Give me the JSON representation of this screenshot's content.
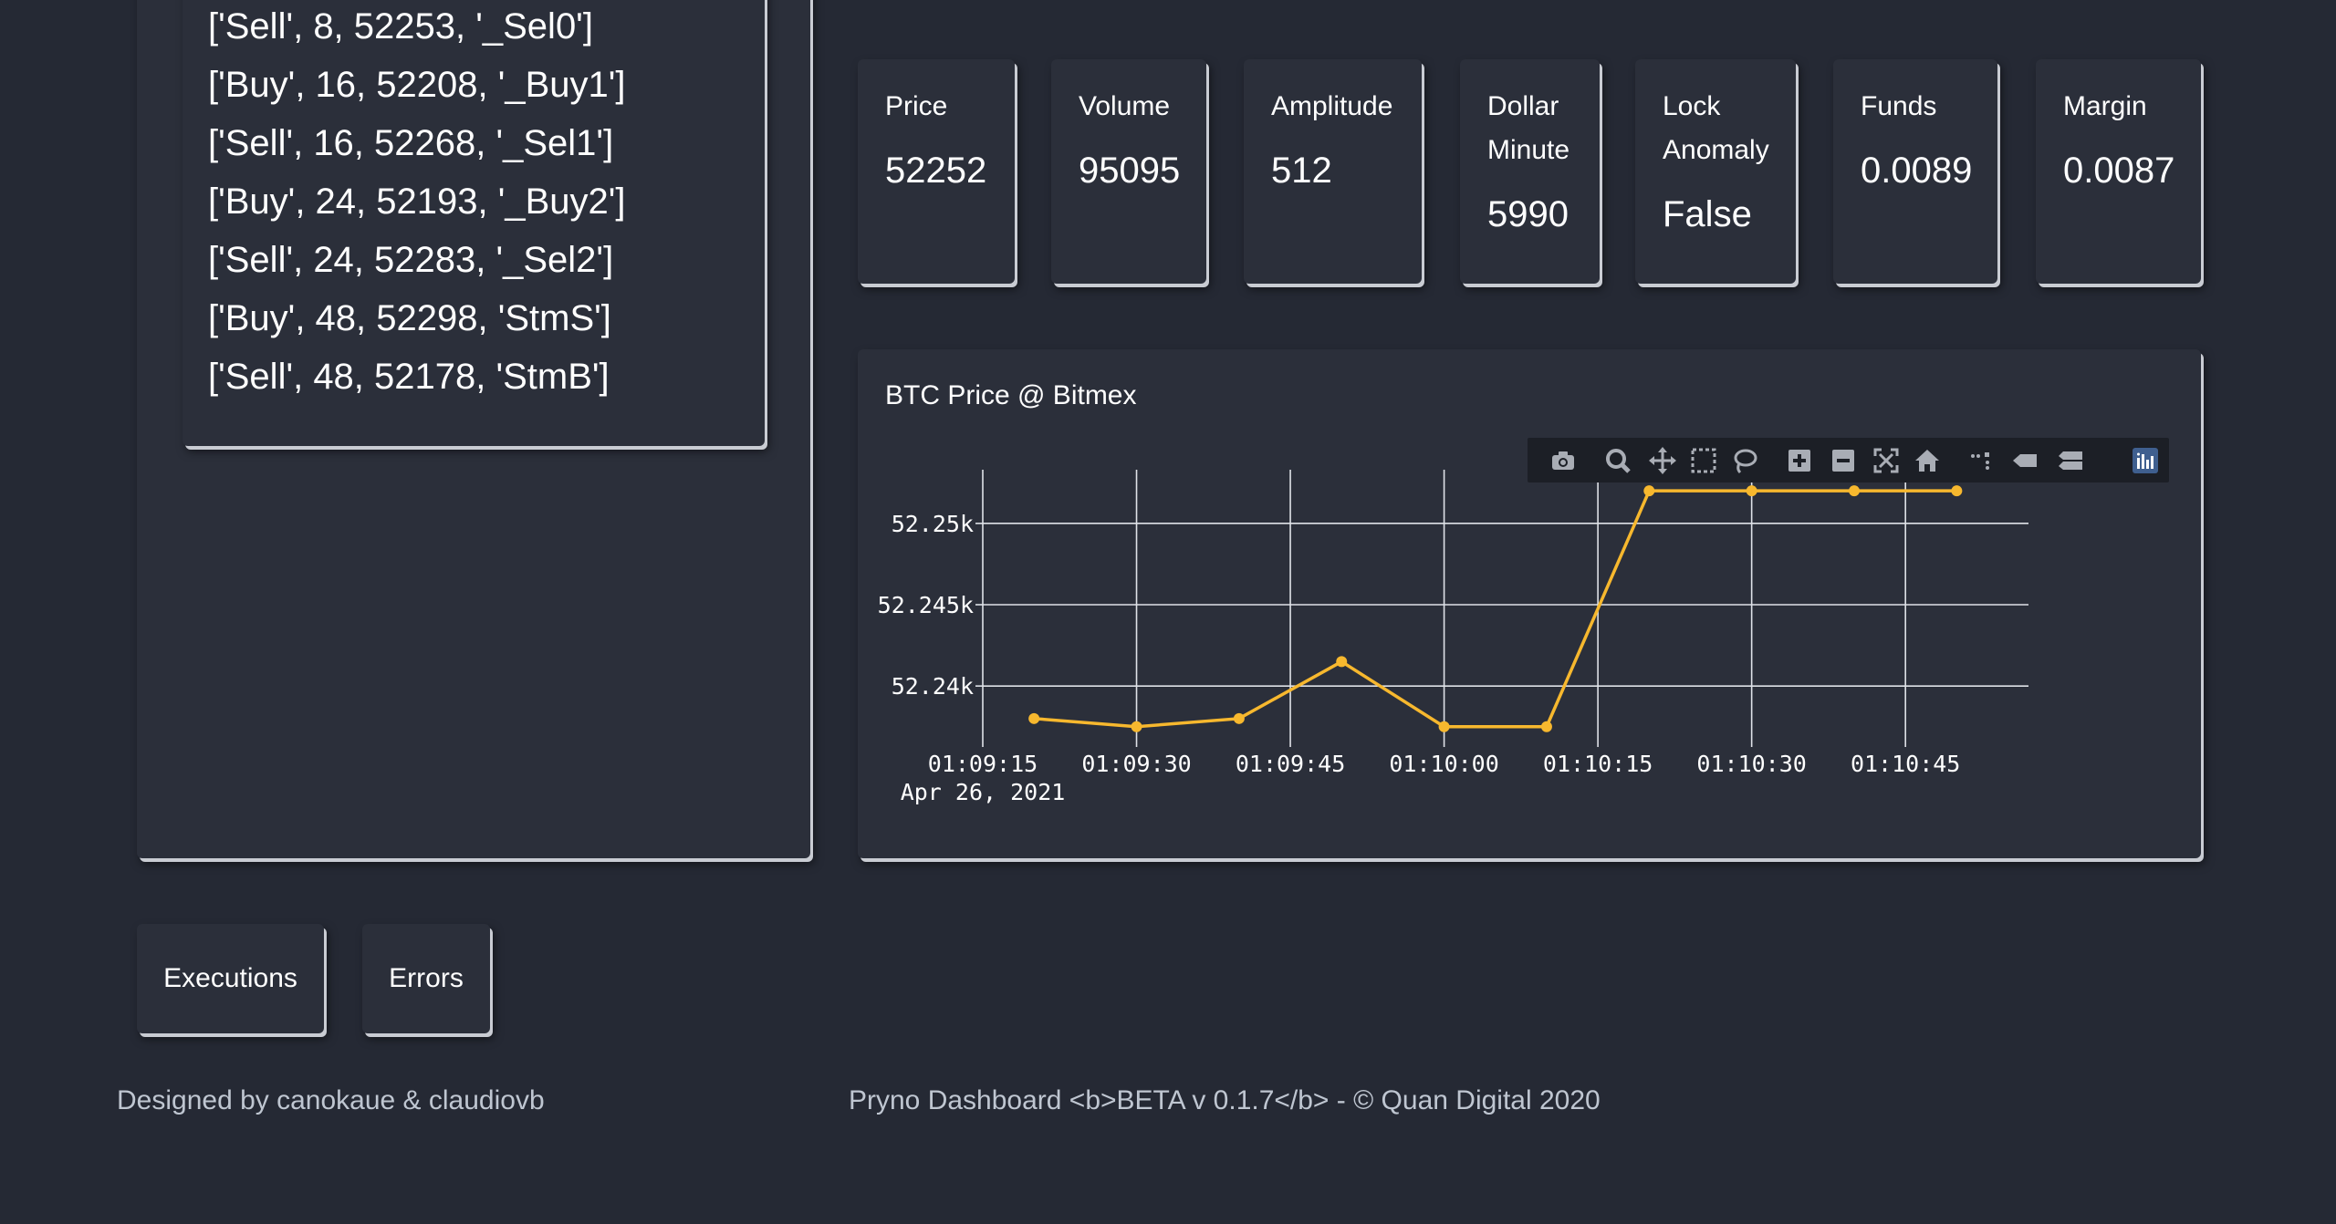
{
  "orders": [
    "['Sell', 8, 52253, '_Sel0']",
    "['Buy', 16, 52208, '_Buy1']",
    "['Sell', 16, 52268, '_Sel1']",
    "['Buy', 24, 52193, '_Buy2']",
    "['Sell', 24, 52283, '_Sel2']",
    "['Buy', 48, 52298, 'StmS']",
    "['Sell', 48, 52178, 'StmB']"
  ],
  "stats": {
    "price": {
      "label": "Price",
      "value": "52252"
    },
    "volume": {
      "label": "Volume",
      "value": "95095"
    },
    "amplitude": {
      "label": "Amplitude",
      "value": "512"
    },
    "dollar_minute": {
      "label_1": "Dollar",
      "label_2": "Minute",
      "value": "5990"
    },
    "lock_anomaly": {
      "label_1": "Lock",
      "label_2": "Anomaly",
      "value": "False"
    },
    "funds": {
      "label": "Funds",
      "value": "0.0089"
    },
    "margin": {
      "label": "Margin",
      "value": "0.0087"
    }
  },
  "buttons": {
    "executions": "Executions",
    "errors": "Errors"
  },
  "footer": {
    "designed_by": "Designed by canokaue & claudiovb",
    "version": "Pryno Dashboard <b>BETA v 0.1.7</b> - © Quan Digital 2020"
  },
  "modebar_icons": [
    "camera-icon",
    "zoom-icon",
    "pan-icon",
    "box-select-icon",
    "lasso-icon",
    "zoom-in-icon",
    "zoom-out-icon",
    "autoscale-icon",
    "reset-axes-icon",
    "spike-lines-icon",
    "hover-closest-icon",
    "hover-compare-icon",
    "plotly-logo-icon"
  ],
  "colors": {
    "background": "#252934",
    "card": "#2b2f3a",
    "line": "#f7b82e"
  },
  "chart_data": {
    "type": "line",
    "title": "BTC Price @ Bitmex",
    "x": [
      "01:09:20",
      "01:09:30",
      "01:09:40",
      "01:09:50",
      "01:10:00",
      "01:10:10",
      "01:10:20",
      "01:10:30",
      "01:10:40",
      "01:10:50"
    ],
    "y": [
      52238,
      52237.5,
      52238,
      52241.5,
      52237.5,
      52237.5,
      52252,
      52252,
      52252,
      52252
    ],
    "x_ticks": [
      "01:09:15",
      "01:09:30",
      "01:09:45",
      "01:10:00",
      "01:10:15",
      "01:10:30",
      "01:10:45"
    ],
    "x_tick_date": "Apr 26, 2021",
    "y_ticks": [
      "52.24k",
      "52.245k",
      "52.25k"
    ],
    "y_tick_values": [
      52240,
      52245,
      52250
    ],
    "xlim": [
      "01:09:15",
      "01:10:57"
    ],
    "ylim": [
      52236.7,
      52253.3
    ],
    "grid": true
  }
}
